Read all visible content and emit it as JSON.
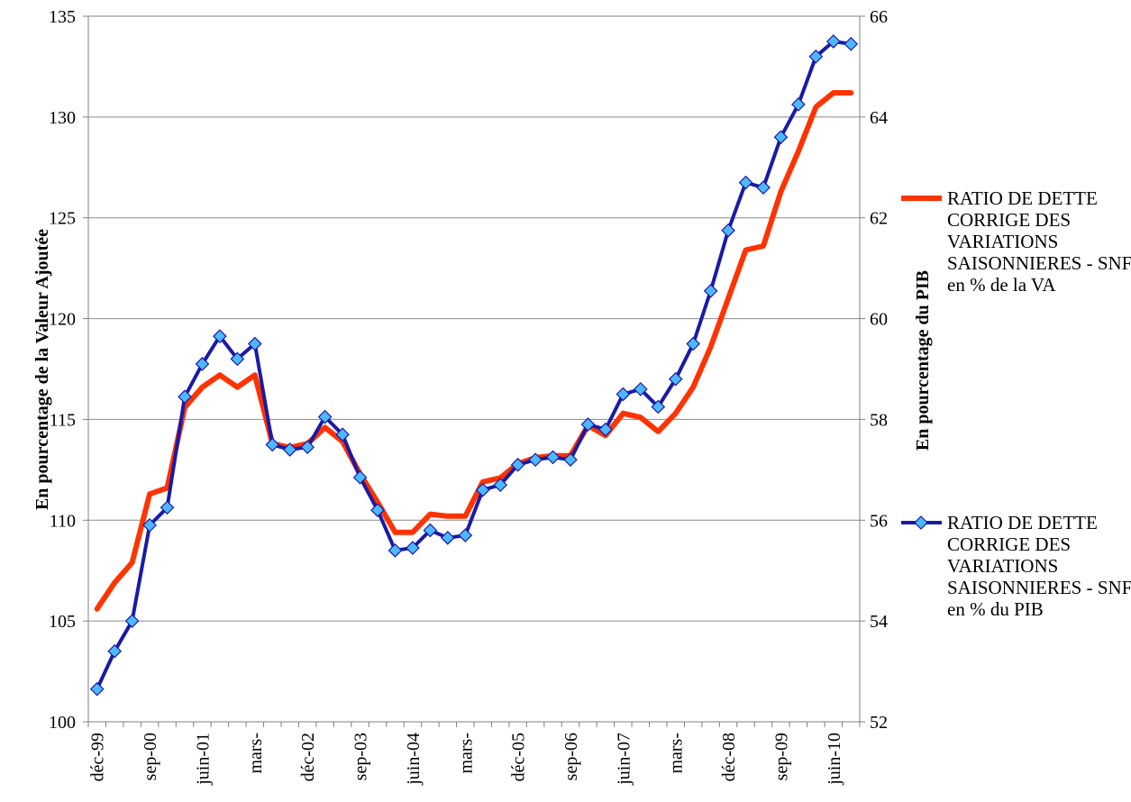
{
  "chart_data": {
    "type": "line",
    "grid": true,
    "legend_position": "right",
    "x_tick_labels": [
      "déc-99",
      "sep-00",
      "juin-01",
      "mars-",
      "déc-02",
      "sep-03",
      "juin-04",
      "mars-",
      "déc-05",
      "sep-06",
      "juin-07",
      "mars-",
      "déc-08",
      "sep-09",
      "juin-10"
    ],
    "x": [
      "déc-99",
      "mars-00",
      "juin-00",
      "sep-00",
      "déc-00",
      "mars-01",
      "juin-01",
      "sep-01",
      "déc-01",
      "mars-02",
      "juin-02",
      "sep-02",
      "déc-02",
      "mars-03",
      "juin-03",
      "sep-03",
      "déc-03",
      "mars-04",
      "juin-04",
      "sep-04",
      "déc-04",
      "mars-05",
      "juin-05",
      "sep-05",
      "déc-05",
      "mars-06",
      "juin-06",
      "sep-06",
      "déc-06",
      "mars-07",
      "juin-07",
      "sep-07",
      "déc-07",
      "mars-08",
      "juin-08",
      "sep-08",
      "déc-08",
      "mars-09",
      "juin-09",
      "sep-09",
      "déc-09",
      "mars-10",
      "juin-10",
      "sep-10"
    ],
    "y_left": {
      "label": "En pourcentage de la Valeur Ajoutée",
      "min": 100,
      "max": 135,
      "ticks": [
        100,
        105,
        110,
        115,
        120,
        125,
        130,
        135
      ]
    },
    "y_right": {
      "label": "En pourcentage du PIB",
      "min": 52,
      "max": 66,
      "ticks": [
        52,
        54,
        56,
        58,
        60,
        62,
        64,
        66
      ]
    },
    "series": [
      {
        "name": "RATIO DE DETTE CORRIGE DES VARIATIONS SAISONNIERES - SNF en % de la VA",
        "axis": "left",
        "color": "#ff3300",
        "marker": "none",
        "values": [
          105.6,
          106.9,
          107.9,
          111.3,
          111.6,
          115.6,
          116.6,
          117.2,
          116.6,
          117.2,
          113.8,
          113.6,
          113.8,
          114.6,
          113.9,
          112.3,
          110.9,
          109.4,
          109.4,
          110.3,
          110.2,
          110.2,
          111.9,
          112.1,
          112.8,
          113.1,
          113.2,
          113.2,
          114.7,
          114.2,
          115.3,
          115.1,
          114.4,
          115.3,
          116.6,
          118.6,
          121.0,
          123.4,
          123.6,
          126.3,
          128.3,
          130.5,
          131.2,
          131.2
        ]
      },
      {
        "name": "RATIO DE DETTE CORRIGE DES VARIATIONS SAISONNIERES - SNF en % du PIB",
        "axis": "right",
        "color": "#1a1aa6",
        "marker_color": "#4db8ff",
        "marker": "diamond",
        "values": [
          52.65,
          53.4,
          54.0,
          55.9,
          56.25,
          58.45,
          59.1,
          59.65,
          59.2,
          59.5,
          57.5,
          57.4,
          57.45,
          58.05,
          57.7,
          56.85,
          56.2,
          55.4,
          55.45,
          55.8,
          55.65,
          55.7,
          56.6,
          56.7,
          57.1,
          57.2,
          57.25,
          57.2,
          57.9,
          57.8,
          58.5,
          58.6,
          58.25,
          58.8,
          59.5,
          60.55,
          61.75,
          62.7,
          62.6,
          63.6,
          64.25,
          65.2,
          65.5,
          65.45
        ]
      }
    ]
  }
}
